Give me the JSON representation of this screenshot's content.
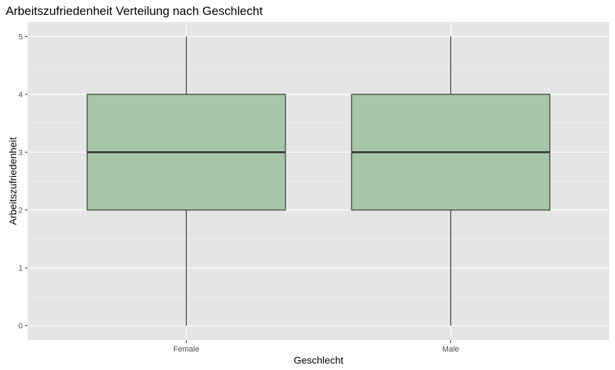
{
  "chart_data": {
    "type": "boxplot",
    "title": "Arbeitszufriedenheit Verteilung nach Geschlecht",
    "xlabel": "Geschlecht",
    "ylabel": "Arbeitszufriedenheit",
    "categories": [
      "Female",
      "Male"
    ],
    "boxes": [
      {
        "category": "Female",
        "min": 0,
        "q1": 2,
        "median": 3,
        "q3": 4,
        "max": 5
      },
      {
        "category": "Male",
        "min": 0,
        "q1": 2,
        "median": 3,
        "q3": 4,
        "max": 5
      }
    ],
    "y_ticks": [
      0,
      1,
      2,
      3,
      4,
      5
    ],
    "ylim": [
      -0.25,
      5.25
    ],
    "grid": true,
    "colors": {
      "panel": "#e5e5e5",
      "grid_major": "#ffffff",
      "grid_minor": "#f0f0f0",
      "box_fill": "#a8c6a8",
      "box_line": "#333333",
      "tick": "#333333"
    }
  }
}
